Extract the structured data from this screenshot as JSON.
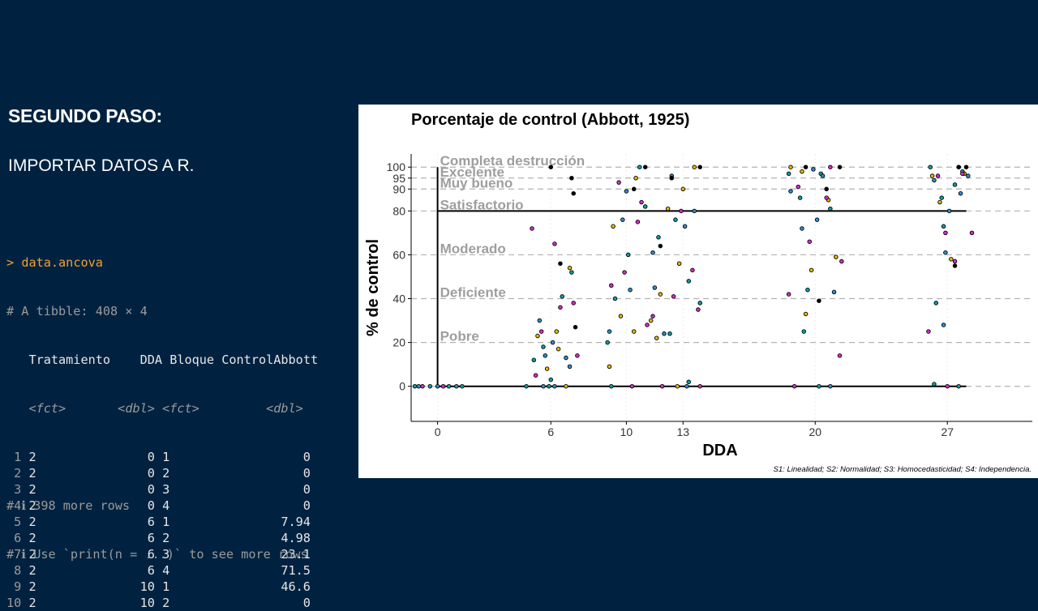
{
  "slide": {
    "heading": "SEGUNDO PASO:",
    "subheading": "IMPORTAR DATOS A R."
  },
  "console": {
    "command_prompt": ">",
    "command": "data.ancova",
    "tibble_info": "# A tibble: 408 × 4",
    "columns": [
      "Tratamiento",
      "DDA",
      "Bloque",
      "ControlAbbott"
    ],
    "types": [
      "<fct>",
      "<dbl>",
      "<fct>",
      "<dbl>"
    ],
    "rows": [
      [
        "1",
        "2",
        "0",
        "1",
        "0"
      ],
      [
        "2",
        "2",
        "0",
        "2",
        "0"
      ],
      [
        "3",
        "2",
        "0",
        "3",
        "0"
      ],
      [
        "4",
        "2",
        "0",
        "4",
        "0"
      ],
      [
        "5",
        "2",
        "6",
        "1",
        "7.94"
      ],
      [
        "6",
        "2",
        "6",
        "2",
        "4.98"
      ],
      [
        "7",
        "2",
        "6",
        "3",
        "23.1"
      ],
      [
        "8",
        "2",
        "6",
        "4",
        "71.5"
      ],
      [
        "9",
        "2",
        "10",
        "1",
        "46.6"
      ],
      [
        "10",
        "2",
        "10",
        "2",
        "0"
      ]
    ],
    "footer1": "# ℹ 398 more rows",
    "footer2": "# ℹ Use `print(n = ...)` to see more rows"
  },
  "chart_data": {
    "type": "scatter",
    "title": "Porcentaje de control (Abbott, 1925)",
    "xlabel": "DDA",
    "ylabel": "% de control",
    "caption": "S1: Linealidad; S2: Normalidad; S3: Homocedasticidad; S4: Independencia.",
    "x_ticks": [
      0,
      6,
      10,
      13,
      20,
      27
    ],
    "y_ticks": [
      0,
      20,
      40,
      60,
      80,
      90,
      95,
      100
    ],
    "xlim": [
      -1.4,
      31.5
    ],
    "ylim": [
      -16,
      106
    ],
    "threshold_lines": [
      0,
      20,
      40,
      60,
      80,
      90,
      95,
      100
    ],
    "solid_reference_lines": [
      0,
      80
    ],
    "categories": [
      {
        "label": "Completa destrucción",
        "y": 100
      },
      {
        "label": "Excelente",
        "y": 95
      },
      {
        "label": "Muy bueno",
        "y": 90
      },
      {
        "label": "Satisfactorio",
        "y": 80
      },
      {
        "label": "Moderado",
        "y": 60
      },
      {
        "label": "Deficiente",
        "y": 40
      },
      {
        "label": "Pobre",
        "y": 20
      }
    ],
    "point_colors": [
      "#00a3a6",
      "#e7b800",
      "#d92bcf",
      "#2c8fd6",
      "#000000"
    ],
    "series": [
      {
        "color": "#00a3a6",
        "points": [
          [
            -1.2,
            0
          ],
          [
            -0.4,
            0
          ],
          [
            0.6,
            0
          ],
          [
            1.3,
            0
          ],
          [
            5.1,
            12
          ],
          [
            5.6,
            18
          ],
          [
            6.0,
            3
          ],
          [
            6.6,
            41
          ],
          [
            7.1,
            52
          ],
          [
            4.7,
            0
          ],
          [
            5.9,
            0
          ],
          [
            9.4,
            40
          ],
          [
            10.1,
            60
          ],
          [
            11.0,
            82
          ],
          [
            11.7,
            68
          ],
          [
            12.6,
            76
          ],
          [
            13.3,
            48
          ],
          [
            9.0,
            20
          ],
          [
            10.7,
            100
          ],
          [
            12.3,
            24
          ],
          [
            13.9,
            38
          ],
          [
            9.2,
            0
          ],
          [
            13.3,
            2
          ],
          [
            18.6,
            97
          ],
          [
            19.2,
            86
          ],
          [
            20.3,
            97
          ],
          [
            20.8,
            81
          ],
          [
            19.6,
            44
          ],
          [
            19.4,
            25
          ],
          [
            20.2,
            0
          ],
          [
            26.1,
            100
          ],
          [
            26.7,
            86
          ],
          [
            27.4,
            92
          ],
          [
            27.8,
            98
          ],
          [
            26.8,
            73
          ],
          [
            26.4,
            38
          ],
          [
            26.3,
            1
          ],
          [
            27.6,
            0
          ]
        ]
      },
      {
        "color": "#e7b800",
        "points": [
          [
            5.3,
            23
          ],
          [
            6.3,
            25
          ],
          [
            5.8,
            8
          ],
          [
            7.0,
            54
          ],
          [
            6.4,
            17
          ],
          [
            6.8,
            0
          ],
          [
            9.1,
            9
          ],
          [
            9.7,
            32
          ],
          [
            10.4,
            25
          ],
          [
            11.3,
            30
          ],
          [
            12.2,
            81
          ],
          [
            13.0,
            90
          ],
          [
            9.3,
            73
          ],
          [
            10.5,
            95
          ],
          [
            11.6,
            22
          ],
          [
            12.8,
            56
          ],
          [
            13.6,
            100
          ],
          [
            11.8,
            42
          ],
          [
            12.7,
            0
          ],
          [
            18.7,
            100
          ],
          [
            19.5,
            33
          ],
          [
            20.7,
            85
          ],
          [
            19.8,
            53
          ],
          [
            21.1,
            59
          ],
          [
            19.3,
            98
          ],
          [
            26.2,
            96
          ],
          [
            27.2,
            58
          ],
          [
            27.6,
            100
          ],
          [
            26.6,
            84
          ],
          [
            27.9,
            97
          ]
        ]
      },
      {
        "color": "#d92bcf",
        "points": [
          [
            -0.8,
            0
          ],
          [
            0.3,
            0
          ],
          [
            5.0,
            72
          ],
          [
            5.5,
            25
          ],
          [
            6.2,
            65
          ],
          [
            6.5,
            36
          ],
          [
            7.2,
            38
          ],
          [
            5.2,
            5
          ],
          [
            7.4,
            14
          ],
          [
            9.2,
            46
          ],
          [
            9.9,
            52
          ],
          [
            10.8,
            84
          ],
          [
            11.4,
            32
          ],
          [
            12.5,
            41
          ],
          [
            13.5,
            53
          ],
          [
            9.6,
            93
          ],
          [
            10.6,
            75
          ],
          [
            11.1,
            28
          ],
          [
            12.9,
            80
          ],
          [
            13.8,
            35
          ],
          [
            10.3,
            0
          ],
          [
            11.9,
            0
          ],
          [
            13.9,
            0
          ],
          [
            18.6,
            42
          ],
          [
            19.1,
            91
          ],
          [
            20.6,
            86
          ],
          [
            21.3,
            14
          ],
          [
            19.7,
            66
          ],
          [
            20.8,
            100
          ],
          [
            21.4,
            57
          ],
          [
            18.9,
            0
          ],
          [
            26.0,
            25
          ],
          [
            26.9,
            70
          ],
          [
            27.4,
            57
          ],
          [
            27.8,
            97
          ],
          [
            28.3,
            70
          ],
          [
            26.5,
            96
          ],
          [
            27.0,
            0
          ]
        ]
      },
      {
        "color": "#2c8fd6",
        "points": [
          [
            -1.0,
            0
          ],
          [
            0.0,
            0
          ],
          [
            1.0,
            0
          ],
          [
            5.4,
            30
          ],
          [
            5.7,
            14
          ],
          [
            6.1,
            20
          ],
          [
            6.8,
            13
          ],
          [
            7.0,
            9
          ],
          [
            5.6,
            0
          ],
          [
            6.2,
            0
          ],
          [
            9.8,
            76
          ],
          [
            10.2,
            44
          ],
          [
            11.5,
            45
          ],
          [
            12.0,
            24
          ],
          [
            13.1,
            73
          ],
          [
            13.6,
            80
          ],
          [
            9.1,
            25
          ],
          [
            10.0,
            89
          ],
          [
            12.4,
            96
          ],
          [
            11.4,
            61
          ],
          [
            13.2,
            0
          ],
          [
            18.7,
            89
          ],
          [
            19.3,
            72
          ],
          [
            20.1,
            76
          ],
          [
            20.4,
            96
          ],
          [
            21.0,
            43
          ],
          [
            19.9,
            99
          ],
          [
            20.8,
            0
          ],
          [
            26.3,
            94
          ],
          [
            26.9,
            61
          ],
          [
            27.1,
            80
          ],
          [
            27.7,
            88
          ],
          [
            28.1,
            96
          ],
          [
            26.8,
            28
          ]
        ]
      },
      {
        "color": "#000000",
        "points": [
          [
            6.0,
            100
          ],
          [
            6.5,
            56
          ],
          [
            7.1,
            95
          ],
          [
            7.2,
            88
          ],
          [
            7.3,
            27
          ],
          [
            10.4,
            90
          ],
          [
            11.0,
            100
          ],
          [
            11.8,
            64
          ],
          [
            12.4,
            95
          ],
          [
            13.9,
            100
          ],
          [
            19.5,
            100
          ],
          [
            20.2,
            39
          ],
          [
            20.6,
            90
          ],
          [
            21.3,
            100
          ],
          [
            27.4,
            55
          ],
          [
            27.6,
            100
          ],
          [
            28.0,
            100
          ]
        ]
      }
    ]
  }
}
